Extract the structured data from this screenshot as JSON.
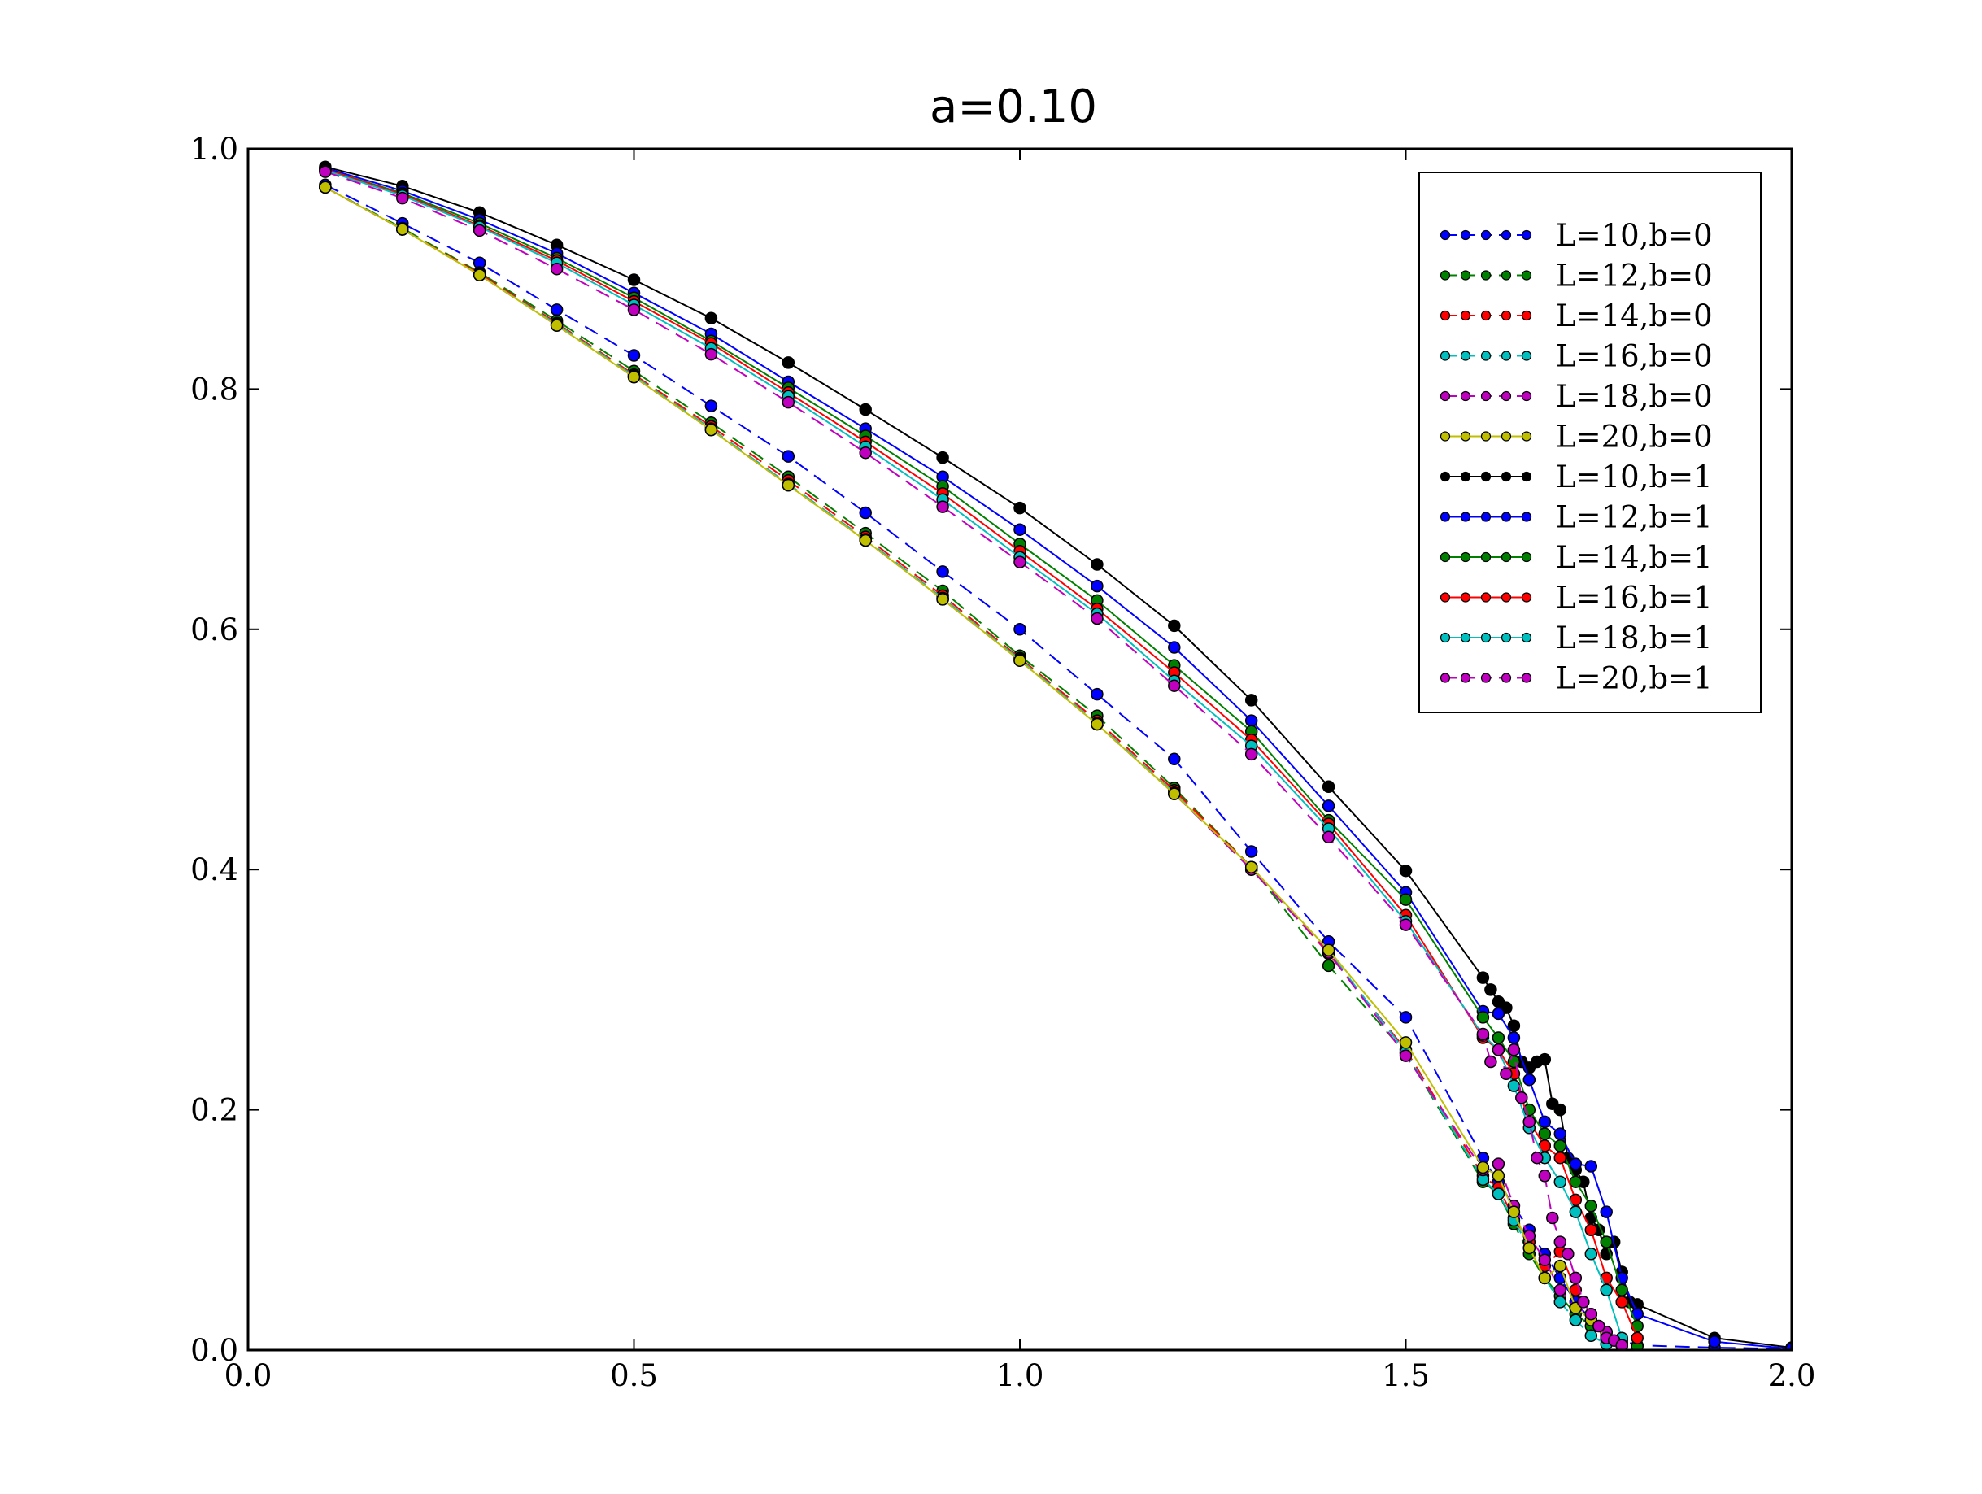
{
  "chart_data": {
    "type": "line",
    "title": "a=0.10",
    "xlabel": "",
    "ylabel": "",
    "xlim": [
      0.0,
      2.0
    ],
    "ylim": [
      0.0,
      1.0
    ],
    "xticks": [
      "0.0",
      "0.5",
      "1.0",
      "1.5",
      "2.0"
    ],
    "yticks": [
      "0.0",
      "0.2",
      "0.4",
      "0.6",
      "0.8",
      "1.0"
    ],
    "grid": false,
    "legend_position": "top-right",
    "series": [
      {
        "name": "L=10,b=0",
        "color": "#0000ff",
        "dash": "dashed",
        "marker_fill": "#0000ff",
        "x": [
          0.1,
          0.2,
          0.3,
          0.4,
          0.5,
          0.6,
          0.7,
          0.8,
          0.9,
          1.0,
          1.1,
          1.2,
          1.3,
          1.4,
          1.5,
          1.6,
          1.62,
          1.64,
          1.66,
          1.68,
          1.7,
          1.72,
          1.74,
          1.76,
          1.78,
          1.8,
          1.9,
          2.0
        ],
        "y": [
          0.97,
          0.938,
          0.905,
          0.866,
          0.828,
          0.786,
          0.744,
          0.697,
          0.648,
          0.6,
          0.546,
          0.492,
          0.415,
          0.34,
          0.277,
          0.16,
          0.14,
          0.12,
          0.1,
          0.08,
          0.06,
          0.04,
          0.025,
          0.015,
          0.008,
          0.004,
          0.002,
          0.001
        ]
      },
      {
        "name": "L=12,b=0",
        "color": "#008000",
        "dash": "dashed",
        "marker_fill": "#008000",
        "x": [
          0.1,
          0.2,
          0.3,
          0.4,
          0.5,
          0.6,
          0.7,
          0.8,
          0.9,
          1.0,
          1.1,
          1.2,
          1.3,
          1.4,
          1.5,
          1.6,
          1.62,
          1.64,
          1.66,
          1.68,
          1.7,
          1.72,
          1.74,
          1.76,
          1.78,
          1.8
        ],
        "y": [
          0.968,
          0.934,
          0.897,
          0.857,
          0.815,
          0.772,
          0.727,
          0.68,
          0.632,
          0.578,
          0.528,
          0.468,
          0.402,
          0.32,
          0.247,
          0.14,
          0.13,
          0.105,
          0.08,
          0.06,
          0.045,
          0.03,
          0.02,
          0.012,
          0.006,
          0.003
        ]
      },
      {
        "name": "L=14,b=0",
        "color": "#ff0000",
        "dash": "dashed",
        "marker_fill": "#ff0000",
        "x": [
          0.1,
          0.2,
          0.3,
          0.4,
          0.5,
          0.6,
          0.7,
          0.8,
          0.9,
          1.0,
          1.1,
          1.2,
          1.3,
          1.4,
          1.5,
          1.6,
          1.62,
          1.64,
          1.66,
          1.68,
          1.7,
          1.72,
          1.74,
          1.76,
          1.78
        ],
        "y": [
          0.968,
          0.933,
          0.896,
          0.855,
          0.812,
          0.769,
          0.724,
          0.677,
          0.628,
          0.576,
          0.524,
          0.466,
          0.402,
          0.33,
          0.25,
          0.145,
          0.135,
          0.11,
          0.09,
          0.07,
          0.082,
          0.05,
          0.03,
          0.015,
          0.005
        ]
      },
      {
        "name": "L=16,b=0",
        "color": "#00bfbf",
        "dash": "dashed",
        "marker_fill": "#00bfbf",
        "x": [
          0.1,
          0.2,
          0.3,
          0.4,
          0.5,
          0.6,
          0.7,
          0.8,
          0.9,
          1.0,
          1.1,
          1.2,
          1.3,
          1.4,
          1.5,
          1.6,
          1.62,
          1.64,
          1.66,
          1.68,
          1.7,
          1.72,
          1.74,
          1.76
        ],
        "y": [
          0.968,
          0.933,
          0.895,
          0.854,
          0.811,
          0.767,
          0.721,
          0.675,
          0.626,
          0.575,
          0.522,
          0.464,
          0.4,
          0.332,
          0.248,
          0.142,
          0.13,
          0.108,
          0.085,
          0.06,
          0.04,
          0.025,
          0.012,
          0.005
        ]
      },
      {
        "name": "L=18,b=0",
        "color": "#bf00bf",
        "dash": "dashed",
        "marker_fill": "#bf00bf",
        "x": [
          0.1,
          0.2,
          0.3,
          0.4,
          0.5,
          0.6,
          0.7,
          0.8,
          0.9,
          1.0,
          1.1,
          1.2,
          1.3,
          1.4,
          1.5,
          1.6,
          1.62,
          1.64,
          1.66,
          1.68,
          1.7,
          1.72,
          1.74,
          1.76,
          1.78
        ],
        "y": [
          0.968,
          0.933,
          0.895,
          0.853,
          0.81,
          0.766,
          0.72,
          0.674,
          0.625,
          0.574,
          0.521,
          0.463,
          0.4,
          0.331,
          0.245,
          0.15,
          0.155,
          0.12,
          0.095,
          0.075,
          0.05,
          0.035,
          0.03,
          0.015,
          0.003
        ]
      },
      {
        "name": "L=20,b=0",
        "color": "#bfbf00",
        "dash": "solid",
        "marker_fill": "#bfbf00",
        "x": [
          0.1,
          0.2,
          0.3,
          0.4,
          0.5,
          0.6,
          0.7,
          0.8,
          0.9,
          1.0,
          1.1,
          1.2,
          1.3,
          1.4,
          1.5,
          1.6,
          1.62,
          1.64,
          1.66,
          1.68,
          1.7,
          1.72,
          1.74,
          1.76,
          1.78
        ],
        "y": [
          0.968,
          0.933,
          0.895,
          0.853,
          0.81,
          0.766,
          0.72,
          0.674,
          0.625,
          0.574,
          0.521,
          0.463,
          0.402,
          0.333,
          0.256,
          0.152,
          0.145,
          0.115,
          0.085,
          0.06,
          0.07,
          0.035,
          0.025,
          0.01,
          0.004
        ]
      },
      {
        "name": "L=10,b=1",
        "color": "#000000",
        "dash": "solid",
        "marker_fill": "#000000",
        "x": [
          0.1,
          0.2,
          0.3,
          0.4,
          0.5,
          0.6,
          0.7,
          0.8,
          0.9,
          1.0,
          1.1,
          1.2,
          1.3,
          1.4,
          1.5,
          1.6,
          1.61,
          1.62,
          1.63,
          1.64,
          1.65,
          1.66,
          1.67,
          1.68,
          1.69,
          1.7,
          1.71,
          1.72,
          1.73,
          1.74,
          1.75,
          1.76,
          1.77,
          1.78,
          1.79,
          1.8,
          1.9,
          2.0
        ],
        "y": [
          0.985,
          0.969,
          0.947,
          0.92,
          0.891,
          0.859,
          0.822,
          0.783,
          0.743,
          0.701,
          0.654,
          0.603,
          0.541,
          0.469,
          0.399,
          0.31,
          0.3,
          0.29,
          0.285,
          0.27,
          0.24,
          0.235,
          0.24,
          0.242,
          0.205,
          0.2,
          0.16,
          0.15,
          0.14,
          0.11,
          0.1,
          0.08,
          0.09,
          0.065,
          0.04,
          0.038,
          0.01,
          0.002
        ]
      },
      {
        "name": "L=12,b=1",
        "color": "#0000ff",
        "dash": "solid",
        "marker_fill": "#0000ff",
        "x": [
          0.1,
          0.2,
          0.3,
          0.4,
          0.5,
          0.6,
          0.7,
          0.8,
          0.9,
          1.0,
          1.1,
          1.2,
          1.3,
          1.4,
          1.5,
          1.6,
          1.62,
          1.64,
          1.66,
          1.68,
          1.7,
          1.72,
          1.74,
          1.76,
          1.78,
          1.8,
          1.9,
          2.0
        ],
        "y": [
          0.984,
          0.965,
          0.941,
          0.913,
          0.88,
          0.846,
          0.806,
          0.767,
          0.727,
          0.683,
          0.636,
          0.585,
          0.524,
          0.453,
          0.381,
          0.282,
          0.28,
          0.26,
          0.225,
          0.19,
          0.18,
          0.155,
          0.153,
          0.115,
          0.06,
          0.03,
          0.007,
          0.001
        ]
      },
      {
        "name": "L=14,b=1",
        "color": "#008000",
        "dash": "solid",
        "marker_fill": "#008000",
        "x": [
          0.1,
          0.2,
          0.3,
          0.4,
          0.5,
          0.6,
          0.7,
          0.8,
          0.9,
          1.0,
          1.1,
          1.2,
          1.3,
          1.4,
          1.5,
          1.6,
          1.62,
          1.64,
          1.66,
          1.68,
          1.7,
          1.72,
          1.74,
          1.76,
          1.78,
          1.8
        ],
        "y": [
          0.983,
          0.963,
          0.938,
          0.909,
          0.876,
          0.84,
          0.801,
          0.761,
          0.719,
          0.671,
          0.624,
          0.57,
          0.515,
          0.441,
          0.375,
          0.277,
          0.26,
          0.24,
          0.2,
          0.18,
          0.17,
          0.14,
          0.12,
          0.09,
          0.05,
          0.02
        ]
      },
      {
        "name": "L=16,b=1",
        "color": "#ff0000",
        "dash": "solid",
        "marker_fill": "#ff0000",
        "x": [
          0.1,
          0.2,
          0.3,
          0.4,
          0.5,
          0.6,
          0.7,
          0.8,
          0.9,
          1.0,
          1.1,
          1.2,
          1.3,
          1.4,
          1.5,
          1.6,
          1.62,
          1.64,
          1.66,
          1.68,
          1.7,
          1.72,
          1.74,
          1.76,
          1.78,
          1.8
        ],
        "y": [
          0.983,
          0.962,
          0.936,
          0.907,
          0.873,
          0.838,
          0.797,
          0.756,
          0.713,
          0.665,
          0.617,
          0.564,
          0.508,
          0.438,
          0.362,
          0.26,
          0.25,
          0.23,
          0.19,
          0.17,
          0.16,
          0.125,
          0.1,
          0.06,
          0.04,
          0.01
        ]
      },
      {
        "name": "L=18,b=1",
        "color": "#00bfbf",
        "dash": "solid",
        "marker_fill": "#00bfbf",
        "x": [
          0.1,
          0.2,
          0.3,
          0.4,
          0.5,
          0.6,
          0.7,
          0.8,
          0.9,
          1.0,
          1.1,
          1.2,
          1.3,
          1.4,
          1.5,
          1.6,
          1.62,
          1.64,
          1.66,
          1.68,
          1.7,
          1.72,
          1.74,
          1.76,
          1.78
        ],
        "y": [
          0.982,
          0.961,
          0.935,
          0.905,
          0.87,
          0.834,
          0.794,
          0.752,
          0.708,
          0.66,
          0.613,
          0.557,
          0.503,
          0.434,
          0.357,
          0.262,
          0.25,
          0.22,
          0.185,
          0.16,
          0.14,
          0.115,
          0.08,
          0.05,
          0.01
        ]
      },
      {
        "name": "L=20,b=1",
        "color": "#bf00bf",
        "dash": "dashed",
        "marker_fill": "#bf00bf",
        "x": [
          0.1,
          0.2,
          0.3,
          0.4,
          0.5,
          0.6,
          0.7,
          0.8,
          0.9,
          1.0,
          1.1,
          1.2,
          1.3,
          1.4,
          1.5,
          1.6,
          1.61,
          1.62,
          1.63,
          1.64,
          1.65,
          1.66,
          1.67,
          1.68,
          1.69,
          1.7,
          1.71,
          1.72,
          1.73,
          1.74,
          1.75,
          1.76,
          1.77,
          1.78
        ],
        "y": [
          0.981,
          0.959,
          0.932,
          0.9,
          0.866,
          0.829,
          0.789,
          0.747,
          0.702,
          0.656,
          0.609,
          0.553,
          0.496,
          0.427,
          0.354,
          0.263,
          0.24,
          0.25,
          0.23,
          0.25,
          0.21,
          0.19,
          0.16,
          0.145,
          0.11,
          0.09,
          0.08,
          0.06,
          0.04,
          0.03,
          0.02,
          0.01,
          0.008,
          0.004
        ]
      }
    ]
  }
}
